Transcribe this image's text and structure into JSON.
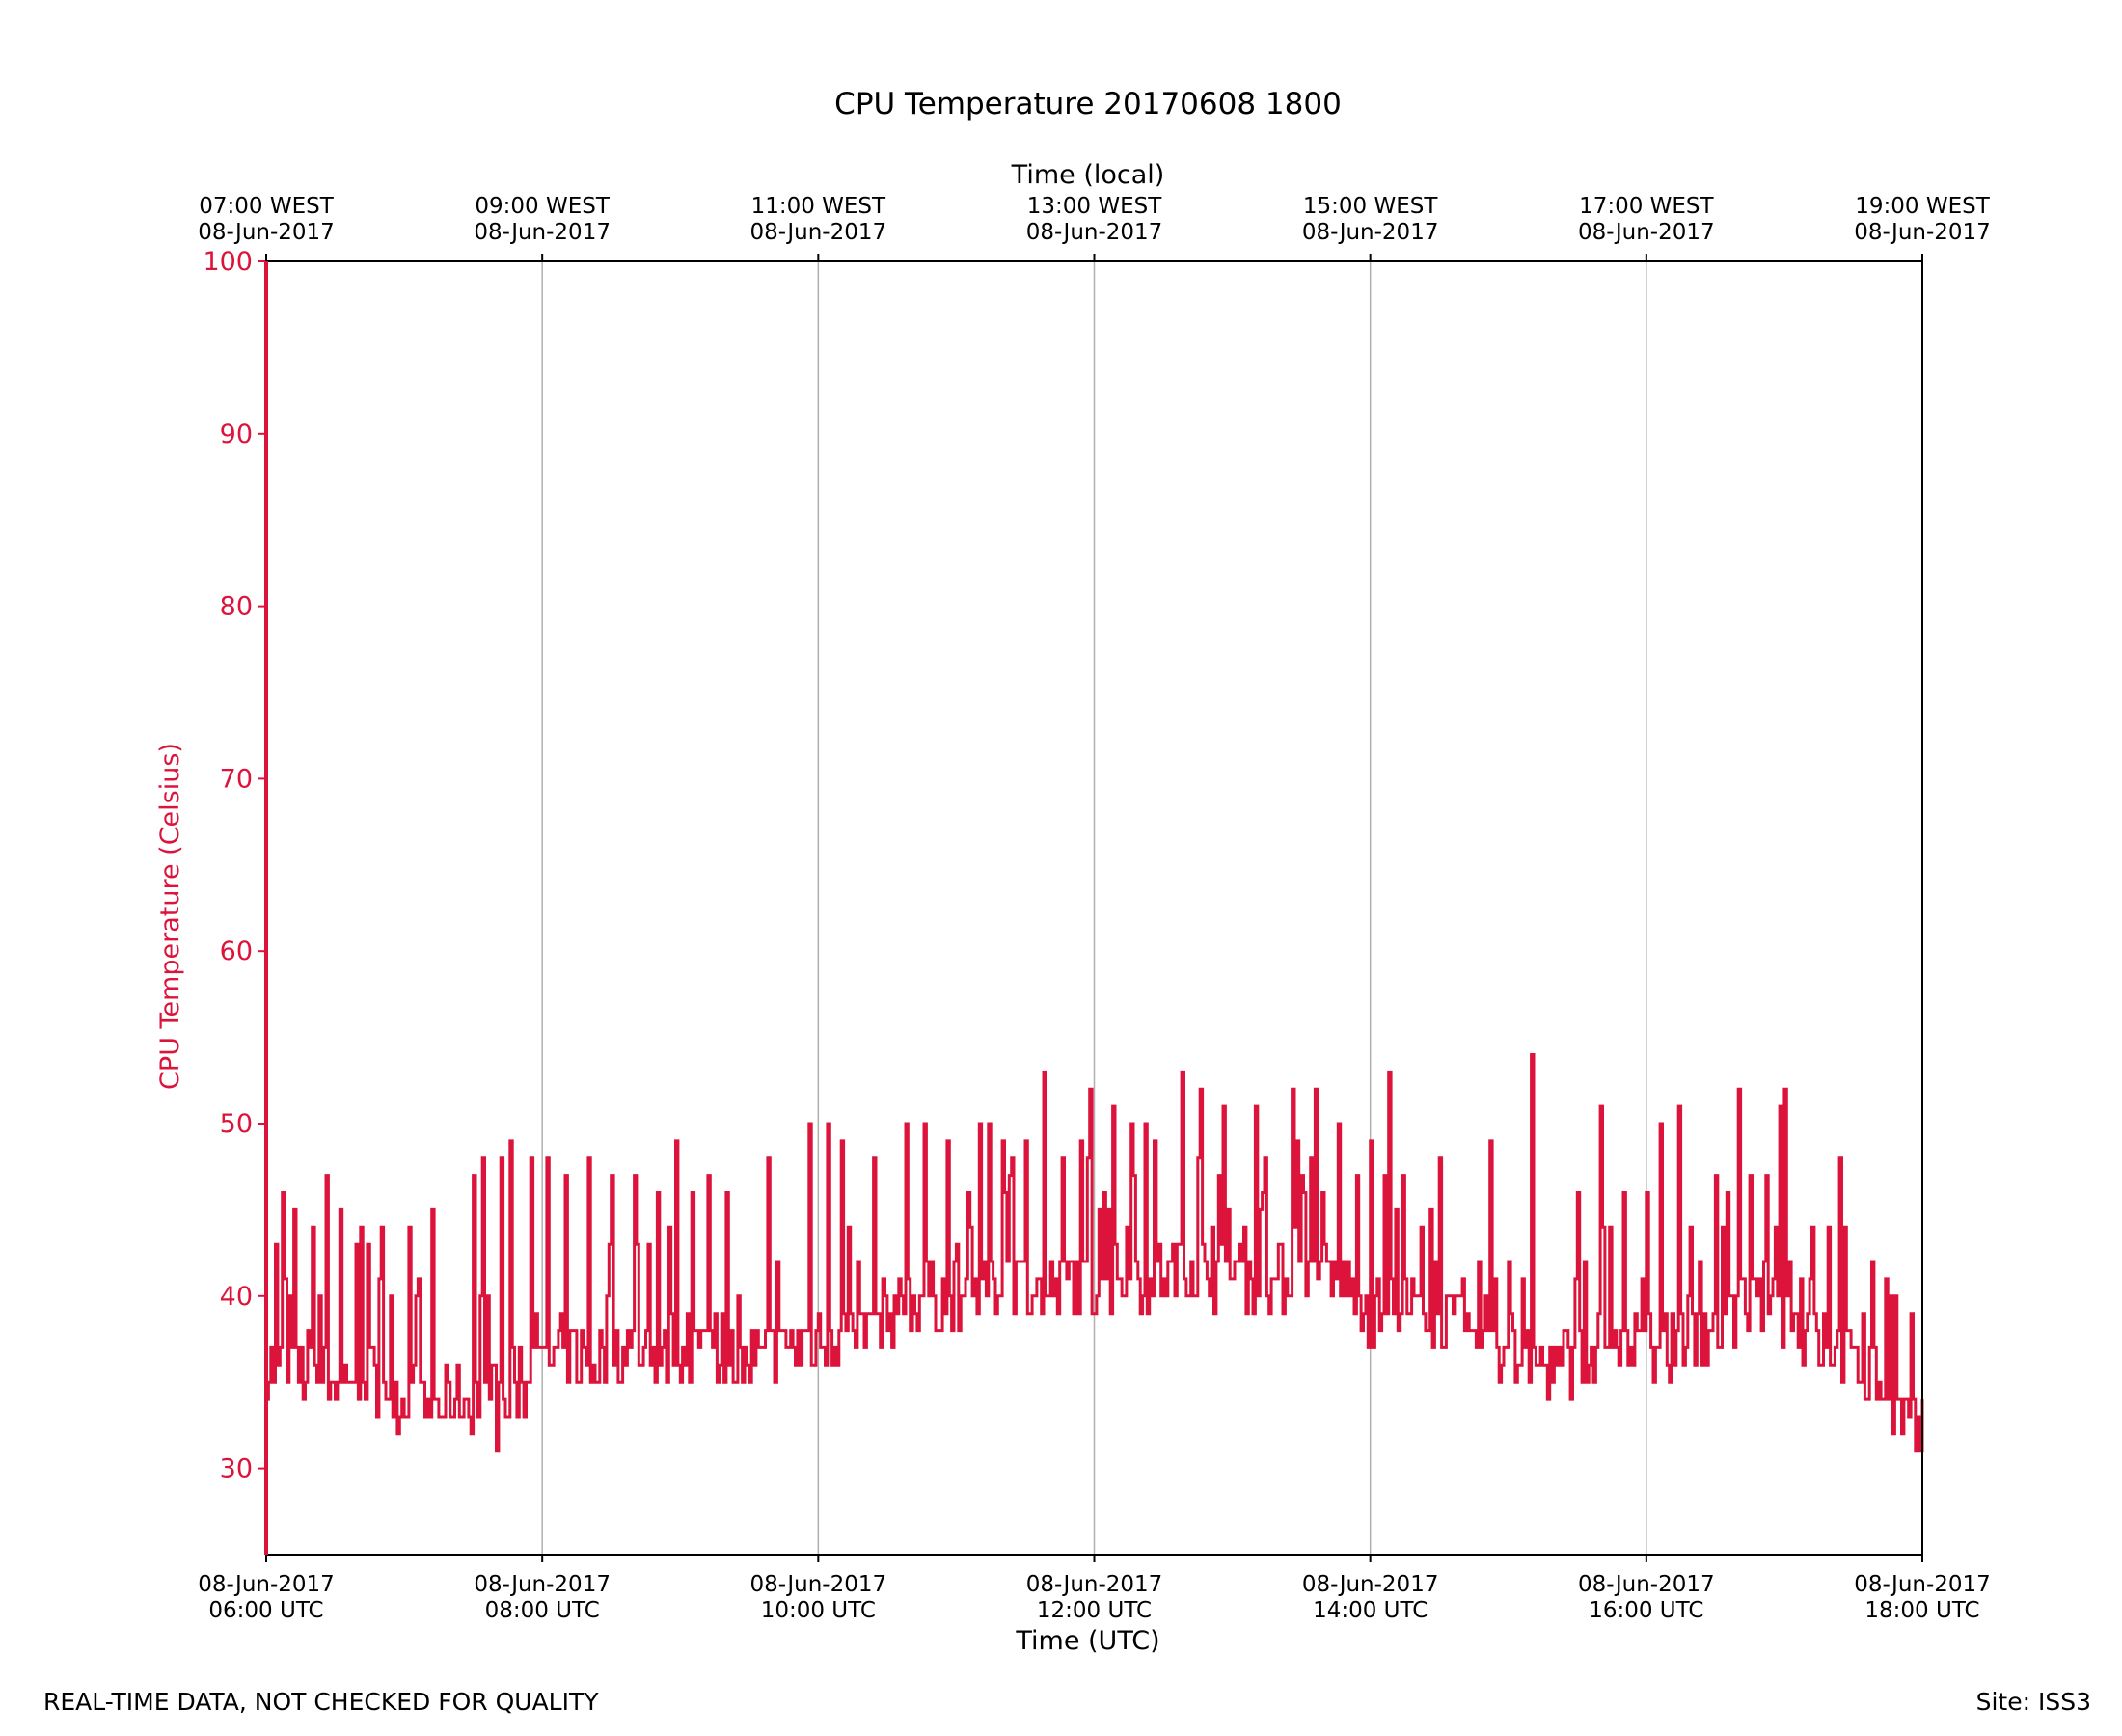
{
  "footer": {
    "left": "REAL-TIME DATA, NOT CHECKED FOR QUALITY",
    "right": "Site: ISS3"
  },
  "chart_data": {
    "type": "line",
    "title": "CPU Temperature 20170608 1800",
    "xlabel": "Time (UTC)",
    "xlabel_top": "Time (local)",
    "ylabel": "CPU Temperature (Celsius)",
    "ylim": [
      25,
      100
    ],
    "xlim": [
      "2017-06-08 06:00",
      "2017-06-08 18:00"
    ],
    "yticks": [
      30,
      40,
      50,
      60,
      70,
      80,
      90,
      100
    ],
    "xticks_bottom": [
      {
        "date": "08-Jun-2017",
        "time": "06:00 UTC"
      },
      {
        "date": "08-Jun-2017",
        "time": "08:00 UTC"
      },
      {
        "date": "08-Jun-2017",
        "time": "10:00 UTC"
      },
      {
        "date": "08-Jun-2017",
        "time": "12:00 UTC"
      },
      {
        "date": "08-Jun-2017",
        "time": "14:00 UTC"
      },
      {
        "date": "08-Jun-2017",
        "time": "16:00 UTC"
      },
      {
        "date": "08-Jun-2017",
        "time": "18:00 UTC"
      }
    ],
    "xticks_top": [
      {
        "time": "07:00 WEST",
        "date": "08-Jun-2017"
      },
      {
        "time": "09:00 WEST",
        "date": "08-Jun-2017"
      },
      {
        "time": "11:00 WEST",
        "date": "08-Jun-2017"
      },
      {
        "time": "13:00 WEST",
        "date": "08-Jun-2017"
      },
      {
        "time": "15:00 WEST",
        "date": "08-Jun-2017"
      },
      {
        "time": "17:00 WEST",
        "date": "08-Jun-2017"
      },
      {
        "time": "19:00 WEST",
        "date": "08-Jun-2017"
      }
    ],
    "grid": "vertical",
    "color": "#dc143c",
    "series": [
      {
        "x": [
          "06:00",
          "06:10",
          "06:20",
          "06:30",
          "06:40",
          "06:50",
          "07:00",
          "07:10",
          "07:20",
          "07:30",
          "07:40",
          "07:50",
          "08:00",
          "08:10",
          "08:20",
          "08:30",
          "08:40",
          "08:50",
          "09:00",
          "09:10",
          "09:20",
          "09:30",
          "09:40",
          "09:50",
          "10:00",
          "10:10",
          "10:20",
          "10:30",
          "10:40",
          "10:50",
          "11:00",
          "11:10",
          "11:20",
          "11:30",
          "11:40",
          "11:50",
          "12:00",
          "12:10",
          "12:20",
          "12:30",
          "12:40",
          "12:50",
          "13:00",
          "13:10",
          "13:20",
          "13:30",
          "13:40",
          "13:50",
          "14:00",
          "14:10",
          "14:20",
          "14:30",
          "14:40",
          "14:50",
          "15:00",
          "15:10",
          "15:20",
          "15:30",
          "15:40",
          "15:50",
          "16:00",
          "16:10",
          "16:20",
          "16:30",
          "16:40",
          "16:50",
          "17:00",
          "17:10",
          "17:20",
          "17:30",
          "17:40",
          "17:50",
          "18:00"
        ],
        "y": [
          36,
          35,
          36,
          35,
          36,
          35,
          34,
          33,
          34,
          34,
          33,
          34,
          36,
          37,
          36,
          37,
          37,
          36,
          37,
          37,
          37,
          36,
          37,
          37,
          38,
          38,
          38,
          39,
          40,
          40,
          40,
          40,
          41,
          41,
          40,
          41,
          41,
          41,
          41,
          41,
          42,
          41,
          41,
          41,
          41,
          41,
          41,
          41,
          39,
          40,
          39,
          39,
          38,
          37,
          37,
          36,
          36,
          36,
          37,
          37,
          37,
          37,
          38,
          38,
          39,
          40,
          39,
          38,
          37,
          36,
          35,
          33,
          32
        ],
        "peaks": [
          [
            "06:04",
            43
          ],
          [
            "06:07",
            46
          ],
          [
            "06:12",
            45
          ],
          [
            "06:20",
            44
          ],
          [
            "06:26",
            47
          ],
          [
            "06:32",
            45
          ],
          [
            "06:50",
            44
          ],
          [
            "07:02",
            44
          ],
          [
            "07:12",
            45
          ],
          [
            "07:30",
            47
          ],
          [
            "07:34",
            48
          ],
          [
            "07:42",
            48
          ],
          [
            "07:46",
            49
          ],
          [
            "07:55",
            48
          ],
          [
            "08:02",
            48
          ],
          [
            "08:10",
            47
          ],
          [
            "08:20",
            48
          ],
          [
            "08:30",
            47
          ],
          [
            "08:40",
            47
          ],
          [
            "08:50",
            46
          ],
          [
            "08:58",
            49
          ],
          [
            "09:05",
            46
          ],
          [
            "09:12",
            47
          ],
          [
            "09:20",
            46
          ],
          [
            "09:38",
            48
          ],
          [
            "09:56",
            50
          ],
          [
            "10:04",
            50
          ],
          [
            "10:10",
            49
          ],
          [
            "10:24",
            48
          ],
          [
            "10:38",
            50
          ],
          [
            "10:46",
            50
          ],
          [
            "10:56",
            49
          ],
          [
            "11:10",
            50
          ],
          [
            "11:14",
            50
          ],
          [
            "11:20",
            49
          ],
          [
            "11:30",
            49
          ],
          [
            "11:38",
            53
          ],
          [
            "11:46",
            48
          ],
          [
            "11:58",
            52
          ],
          [
            "12:08",
            51
          ],
          [
            "12:16",
            50
          ],
          [
            "12:22",
            50
          ],
          [
            "12:38",
            53
          ],
          [
            "12:46",
            52
          ],
          [
            "12:56",
            51
          ],
          [
            "13:10",
            51
          ],
          [
            "13:26",
            52
          ],
          [
            "13:36",
            52
          ],
          [
            "13:46",
            50
          ],
          [
            "14:00",
            49
          ],
          [
            "14:08",
            53
          ],
          [
            "14:30",
            48
          ],
          [
            "14:52",
            49
          ],
          [
            "15:10",
            54
          ],
          [
            "15:30",
            46
          ],
          [
            "15:40",
            51
          ],
          [
            "15:50",
            46
          ],
          [
            "16:00",
            46
          ],
          [
            "16:06",
            50
          ],
          [
            "16:14",
            51
          ],
          [
            "16:30",
            47
          ],
          [
            "16:40",
            52
          ],
          [
            "16:52",
            47
          ],
          [
            "16:58",
            51
          ],
          [
            "17:00",
            52
          ],
          [
            "17:12",
            44
          ],
          [
            "17:24",
            48
          ],
          [
            "17:38",
            42
          ],
          [
            "17:44",
            41
          ]
        ]
      }
    ]
  }
}
